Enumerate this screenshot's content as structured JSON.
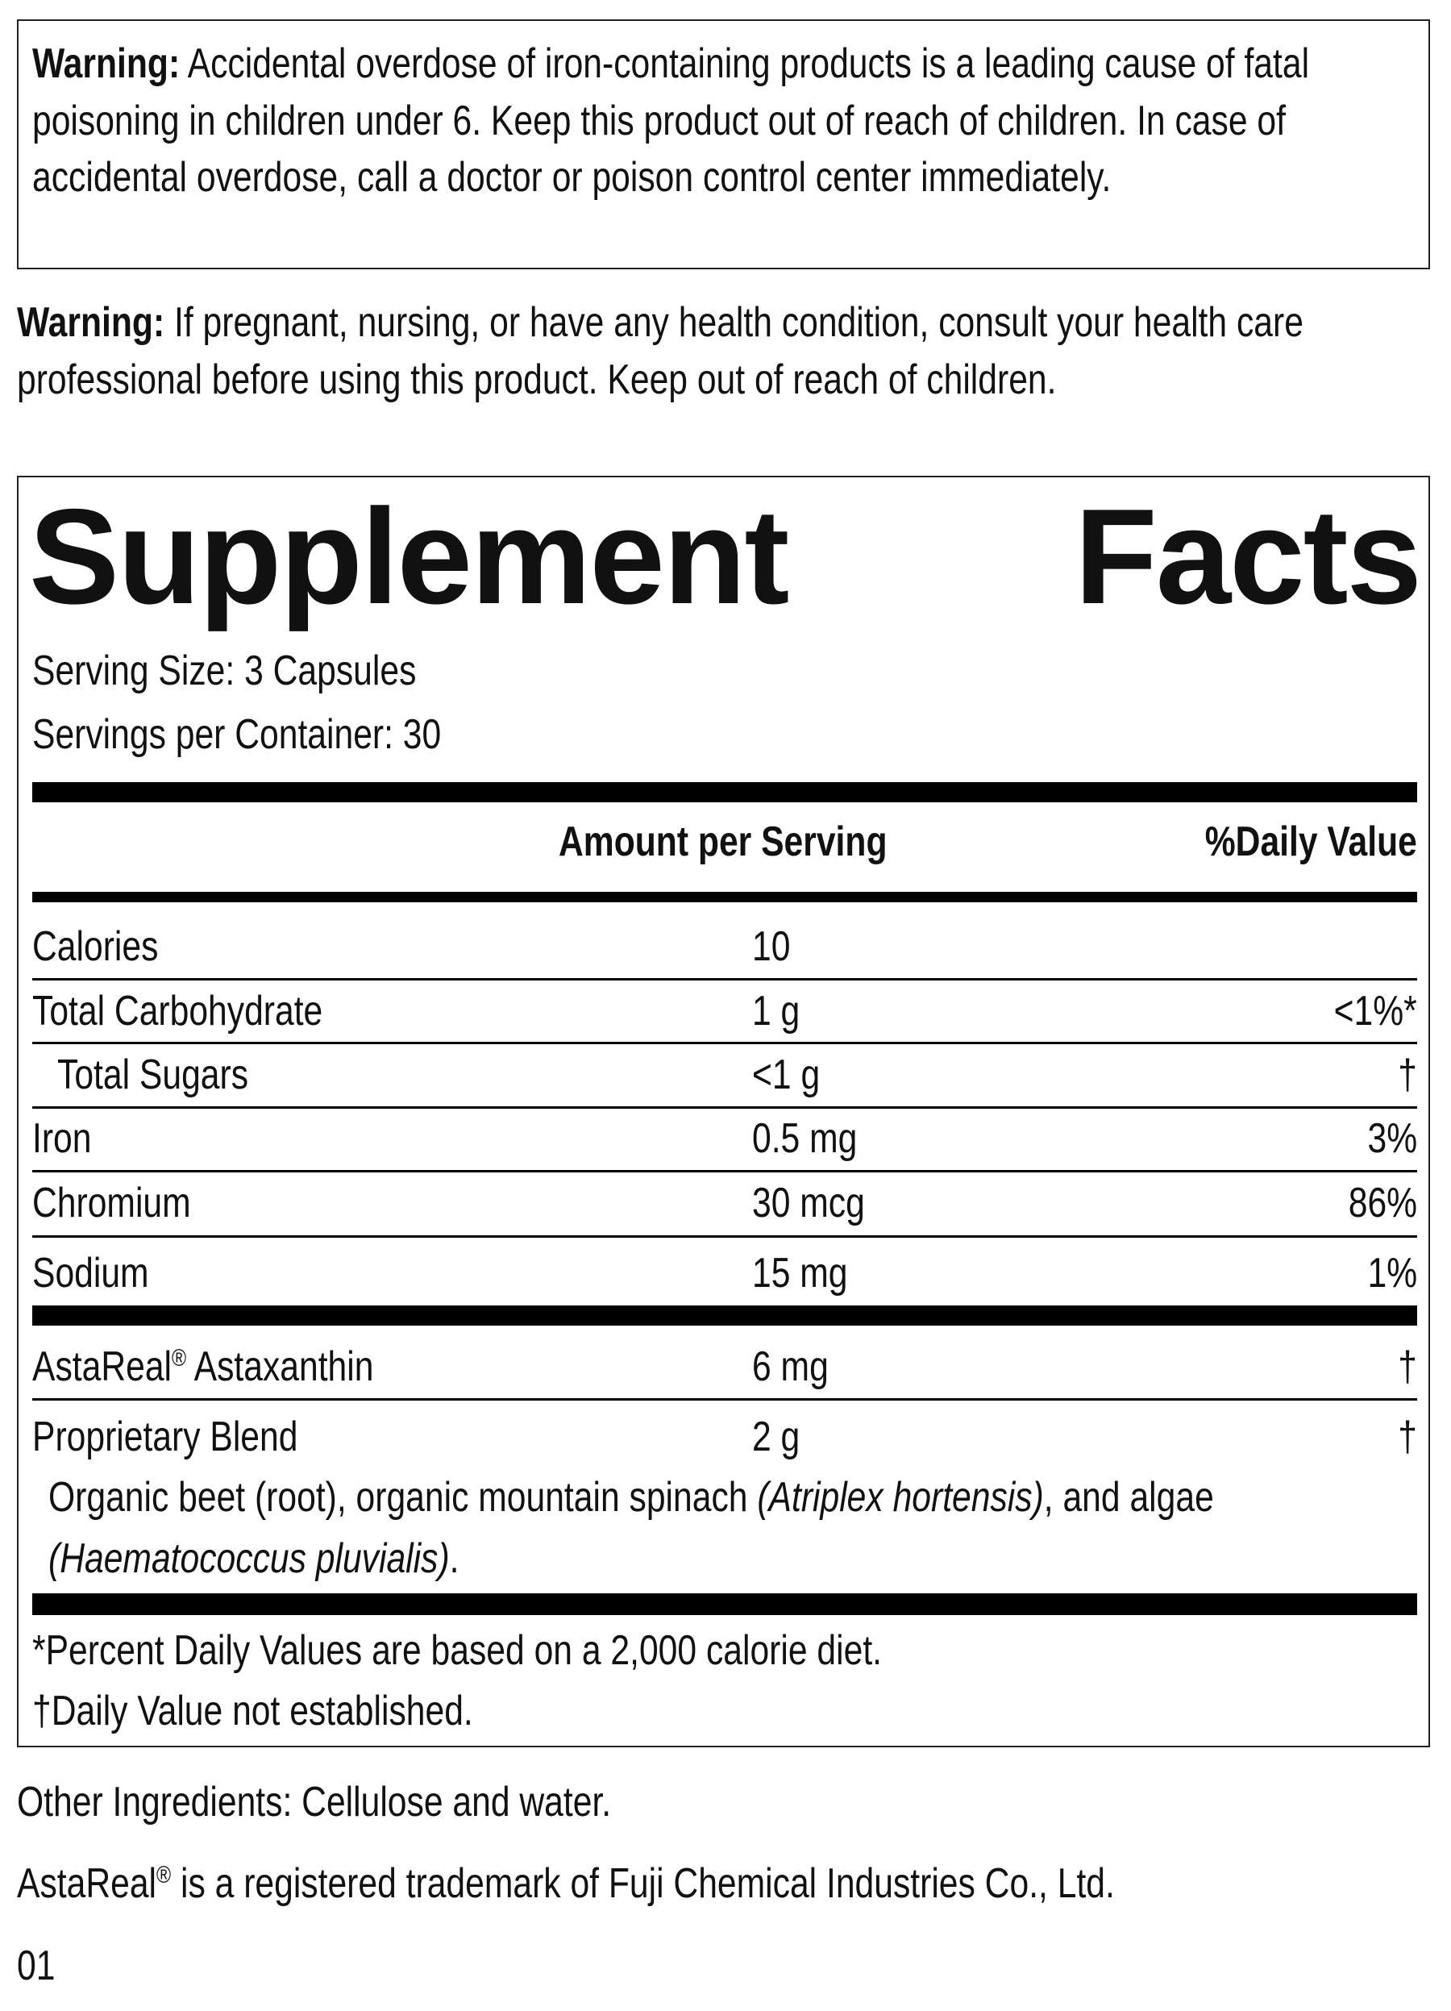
{
  "warning_iron": {
    "label": "Warning:",
    "text": " Accidental overdose of iron-containing products is a leading cause of fatal poisoning in children under 6. Keep this product out of reach of children. In case of accidental overdose, call a doctor or poison control center immediately."
  },
  "warning_general": {
    "label": "Warning:",
    "text": " If pregnant, nursing, or have any health condition, consult your health care professional before using this product. Keep out of reach of children."
  },
  "facts": {
    "title_word1": "Supplement",
    "title_word2": "Facts",
    "serving_size": "Serving Size: 3 Capsules",
    "servings_per_container": "Servings per Container: 30",
    "header_amount": "Amount per Serving",
    "header_dv": "%Daily Value",
    "rows": [
      {
        "name": "Calories",
        "amount": "10",
        "dv": ""
      },
      {
        "name": "Total Carbohydrate",
        "amount": "1 g",
        "dv": "<1%*"
      },
      {
        "name": "Total Sugars",
        "amount": "<1 g",
        "dv": "†"
      },
      {
        "name": "Iron",
        "amount": "0.5 mg",
        "dv": "3%"
      },
      {
        "name": "Chromium",
        "amount": "30 mcg",
        "dv": "86%"
      },
      {
        "name": "Sodium",
        "amount": "15 mg",
        "dv": "1%"
      }
    ],
    "rows2": [
      {
        "name": "AstaReal",
        "reg": "®",
        "name_rest": " Astaxanthin",
        "amount": "6 mg",
        "dv": "†"
      },
      {
        "name": "Proprietary Blend",
        "amount": "2 g",
        "dv": "†"
      }
    ],
    "blend": {
      "part1": "Organic beet (root), organic mountain spinach ",
      "italic1": "(Atriplex hortensis)",
      "part2": ", and algae",
      "italic2": "(Haematococcus pluvialis)",
      "part3": "."
    },
    "footnote1": "*Percent Daily Values are based on a 2,000 calorie diet.",
    "footnote2": "†Daily Value not established."
  },
  "other_ingredients": "Other Ingredients: Cellulose and water.",
  "trademark": {
    "name": "AstaReal",
    "reg": "®",
    "text": " is a registered trademark of Fuji Chemical Industries Co., Ltd."
  },
  "code": "01"
}
